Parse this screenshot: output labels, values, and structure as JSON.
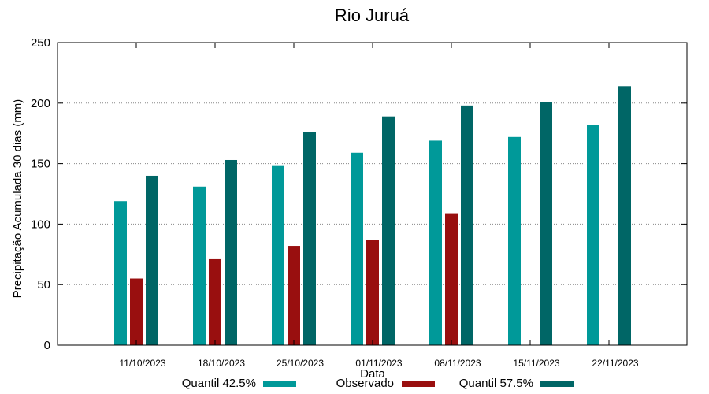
{
  "chart_data": {
    "type": "bar",
    "title": "Rio Juruá",
    "xlabel": "Data",
    "ylabel": "Precipitação Acumulada 30 dias (mm)",
    "ylim": [
      0,
      250
    ],
    "yticks": [
      0,
      50,
      100,
      150,
      200,
      250
    ],
    "grid": "horizontal-dotted",
    "legend_position": "bottom",
    "categories": [
      "11/10/2023",
      "18/10/2023",
      "25/10/2023",
      "01/11/2023",
      "08/11/2023",
      "15/11/2023",
      "22/11/2023"
    ],
    "series": [
      {
        "name": "Quantil 42.5%",
        "color": "#009999",
        "values": [
          119,
          131,
          148,
          159,
          169,
          172,
          182
        ]
      },
      {
        "name": "Observado",
        "color": "#990f0f",
        "values": [
          55,
          71,
          82,
          87,
          109,
          null,
          null
        ]
      },
      {
        "name": "Quantil 57.5%",
        "color": "#006666",
        "values": [
          140,
          153,
          176,
          189,
          198,
          201,
          214
        ]
      }
    ]
  }
}
